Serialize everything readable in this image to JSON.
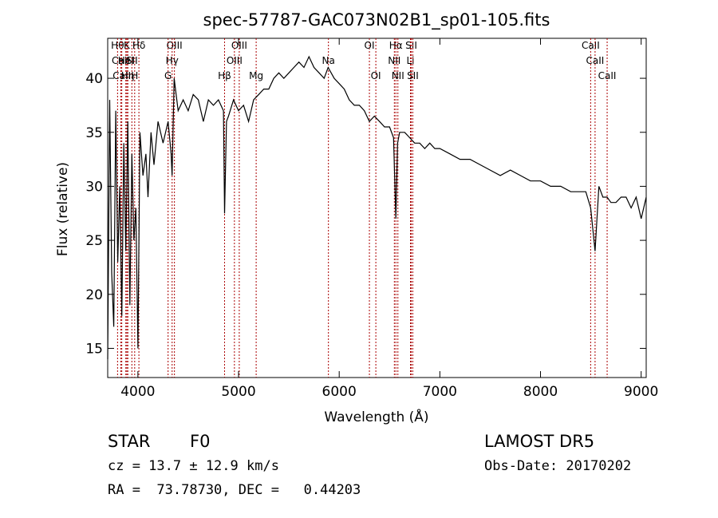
{
  "chart_data": {
    "type": "line",
    "title": "spec-57787-GAC073N02B1_sp01-105.fits",
    "xlabel": "Wavelength (Å)",
    "ylabel": "Flux (relative)",
    "xlim": [
      3700,
      9050
    ],
    "ylim": [
      12.3,
      43.7
    ],
    "xticks": [
      4000,
      5000,
      6000,
      7000,
      8000,
      9000
    ],
    "yticks": [
      15,
      20,
      25,
      30,
      35,
      40
    ],
    "line_color": "#000000",
    "marker_color": "#aa0000",
    "grid": false,
    "series": [
      {
        "x": [
          3700,
          3720,
          3740,
          3760,
          3780,
          3800,
          3820,
          3840,
          3860,
          3880,
          3900,
          3920,
          3940,
          3960,
          3980,
          4000,
          4020,
          4050,
          4080,
          4100,
          4130,
          4160,
          4200,
          4250,
          4300,
          4330,
          4340,
          4360,
          4400,
          4450,
          4500,
          4550,
          4600,
          4650,
          4700,
          4750,
          4800,
          4850,
          4861,
          4880,
          4900,
          4950,
          5000,
          5050,
          5100,
          5150,
          5200,
          5250,
          5300,
          5350,
          5400,
          5450,
          5500,
          5550,
          5600,
          5650,
          5700,
          5750,
          5800,
          5850,
          5890,
          5950,
          6000,
          6050,
          6100,
          6150,
          6200,
          6250,
          6300,
          6350,
          6400,
          6450,
          6500,
          6540,
          6563,
          6580,
          6600,
          6650,
          6700,
          6750,
          6800,
          6850,
          6900,
          6950,
          7000,
          7100,
          7200,
          7300,
          7400,
          7500,
          7600,
          7700,
          7800,
          7900,
          8000,
          8100,
          8200,
          8300,
          8400,
          8450,
          8498,
          8542,
          8580,
          8620,
          8662,
          8700,
          8750,
          8800,
          8850,
          8900,
          8950,
          9000,
          9050
        ],
        "y": [
          14,
          38,
          22,
          17,
          37,
          23,
          30,
          18,
          34,
          24,
          36,
          19,
          33,
          25,
          28,
          15,
          35,
          31,
          33,
          29,
          35,
          32,
          36,
          34,
          36,
          33,
          31,
          40,
          37,
          38,
          37,
          38.5,
          38,
          36,
          38,
          37.5,
          38,
          37,
          27.5,
          36,
          36.5,
          38,
          37,
          37.5,
          36,
          38,
          38.5,
          39,
          39,
          40,
          40.5,
          40,
          40.5,
          41,
          41.5,
          41,
          42,
          41,
          40.5,
          40,
          41,
          40,
          39.5,
          39,
          38,
          37.5,
          37.5,
          37,
          36,
          36.5,
          36,
          35.5,
          35.5,
          34.5,
          27,
          34,
          35,
          35,
          34.5,
          34,
          34,
          33.5,
          34,
          33.5,
          33.5,
          33,
          32.5,
          32.5,
          32,
          31.5,
          31,
          31.5,
          31,
          30.5,
          30.5,
          30,
          30,
          29.5,
          29.5,
          29.5,
          28,
          24,
          30,
          29,
          29,
          28.5,
          28.5,
          29,
          29,
          28,
          29,
          27,
          29
        ]
      }
    ],
    "line_markers": [
      {
        "name": "Hθ",
        "x": 3798,
        "row": 0
      },
      {
        "name": "CaII",
        "x": 3830,
        "row": 1
      },
      {
        "name": "CaII",
        "x": 3840,
        "row": 2
      },
      {
        "name": "K",
        "x": 3890,
        "row": 0
      },
      {
        "name": "HeI",
        "x": 3880,
        "row": 1
      },
      {
        "name": "Hη",
        "x": 3900,
        "row": 2
      },
      {
        "name": "SII",
        "x": 3940,
        "row": 1
      },
      {
        "name": "H",
        "x": 3968,
        "row": 2
      },
      {
        "name": "Hδ",
        "x": 4010,
        "row": 0
      },
      {
        "name": "OIII",
        "x": 4363,
        "row": 0
      },
      {
        "name": "Hγ",
        "x": 4340,
        "row": 1
      },
      {
        "name": "G",
        "x": 4300,
        "row": 2
      },
      {
        "name": "Hβ",
        "x": 4861,
        "row": 2
      },
      {
        "name": "OIII",
        "x": 5007,
        "row": 0
      },
      {
        "name": "OIII",
        "x": 4959,
        "row": 1
      },
      {
        "name": "Mg",
        "x": 5175,
        "row": 2
      },
      {
        "name": "Na",
        "x": 5893,
        "row": 1
      },
      {
        "name": "OI",
        "x": 6300,
        "row": 0
      },
      {
        "name": "OI",
        "x": 6364,
        "row": 2
      },
      {
        "name": "Hα",
        "x": 6563,
        "row": 0
      },
      {
        "name": "NII",
        "x": 6548,
        "row": 1
      },
      {
        "name": "NII",
        "x": 6583,
        "row": 2
      },
      {
        "name": "SII",
        "x": 6716,
        "row": 0
      },
      {
        "name": "Li",
        "x": 6708,
        "row": 1
      },
      {
        "name": "SII",
        "x": 6731,
        "row": 2
      },
      {
        "name": "CaII",
        "x": 8498,
        "row": 0
      },
      {
        "name": "CaII",
        "x": 8542,
        "row": 1
      },
      {
        "name": "CaII",
        "x": 8662,
        "row": 2
      }
    ]
  },
  "info": {
    "obj_class": "STAR",
    "subclass": "F0",
    "survey": "LAMOST DR5",
    "cz": "cz = 13.7 ± 12.9 km/s",
    "obs_date": "Obs-Date: 20170202",
    "radec": "RA =  73.78730, DEC =   0.44203"
  }
}
